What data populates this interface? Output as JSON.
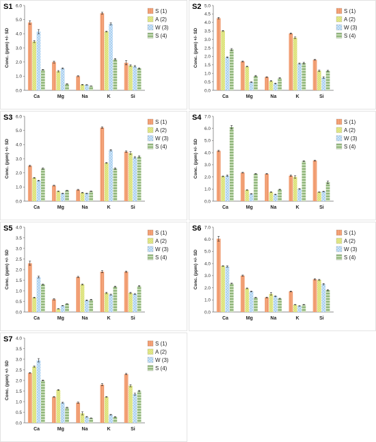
{
  "legend": [
    "S (1)",
    "A (2)",
    "W (3)",
    "S (4)"
  ],
  "ylabel": "Conc. (ppm) +/- SD",
  "categories": [
    "Ca",
    "Mg",
    "Na",
    "K",
    "Si"
  ],
  "colors": [
    "#f4a47a",
    "#e6ec90",
    "#a9d0f0",
    "#a8c896"
  ],
  "chart_data": [
    {
      "type": "bar",
      "title": "S1",
      "categories": [
        "Ca",
        "Mg",
        "Na",
        "K",
        "Si"
      ],
      "ylabel": "Conc. (ppm) +/- SD",
      "ylim": [
        0,
        6
      ],
      "ystep": 1,
      "series": [
        {
          "name": "S (1)",
          "values": [
            4.8,
            2.0,
            1.0,
            5.45,
            1.95
          ],
          "err": [
            0.12,
            0.07,
            0.03,
            0.07,
            0.15
          ]
        },
        {
          "name": "A (2)",
          "values": [
            3.45,
            1.35,
            0.4,
            4.15,
            1.75
          ],
          "err": [
            0.07,
            0.05,
            0.02,
            0.03,
            0.05
          ]
        },
        {
          "name": "W (3)",
          "values": [
            4.15,
            1.55,
            0.38,
            4.7,
            1.7
          ],
          "err": [
            0.15,
            0.04,
            0.02,
            0.08,
            0.05
          ]
        },
        {
          "name": "S (4)",
          "values": [
            1.45,
            0.45,
            0.3,
            2.2,
            1.55
          ],
          "err": [
            0.03,
            0.02,
            0.01,
            0.05,
            0.04
          ]
        }
      ]
    },
    {
      "type": "bar",
      "title": "S2",
      "categories": [
        "Ca",
        "Mg",
        "Na",
        "K",
        "Si"
      ],
      "ylabel": "Conc. (ppm) +/- SD",
      "ylim": [
        0,
        5
      ],
      "ystep": 0.5,
      "series": [
        {
          "name": "S (1)",
          "values": [
            4.25,
            1.7,
            0.78,
            3.35,
            1.8
          ],
          "err": [
            0.05,
            0.03,
            0.02,
            0.03,
            0.02
          ]
        },
        {
          "name": "A (2)",
          "values": [
            3.5,
            1.4,
            0.55,
            3.1,
            1.15
          ],
          "err": [
            0.03,
            0.02,
            0.02,
            0.05,
            0.05
          ]
        },
        {
          "name": "W (3)",
          "values": [
            1.95,
            0.48,
            0.4,
            1.58,
            0.75
          ],
          "err": [
            0.02,
            0.02,
            0.02,
            0.03,
            0.05
          ]
        },
        {
          "name": "S (4)",
          "values": [
            2.4,
            0.85,
            0.72,
            1.6,
            1.15
          ],
          "err": [
            0.06,
            0.03,
            0.02,
            0.05,
            0.03
          ]
        }
      ]
    },
    {
      "type": "bar",
      "title": "S3",
      "categories": [
        "Ca",
        "Mg",
        "Na",
        "K",
        "Si"
      ],
      "ylabel": "Conc. (ppm) +/- SD",
      "ylim": [
        0,
        6
      ],
      "ystep": 1,
      "series": [
        {
          "name": "S (1)",
          "values": [
            2.5,
            1.1,
            0.8,
            5.2,
            3.5
          ],
          "err": [
            0.05,
            0.03,
            0.03,
            0.05,
            0.05
          ]
        },
        {
          "name": "A (2)",
          "values": [
            1.65,
            0.7,
            0.6,
            2.7,
            3.4
          ],
          "err": [
            0.03,
            0.02,
            0.02,
            0.03,
            0.1
          ]
        },
        {
          "name": "W (3)",
          "values": [
            1.45,
            0.55,
            0.55,
            3.6,
            3.1
          ],
          "err": [
            0.03,
            0.02,
            0.02,
            0.05,
            0.05
          ]
        },
        {
          "name": "S (4)",
          "values": [
            2.3,
            0.75,
            0.7,
            2.3,
            3.15
          ],
          "err": [
            0.05,
            0.02,
            0.02,
            0.05,
            0.05
          ]
        }
      ]
    },
    {
      "type": "bar",
      "title": "S4",
      "categories": [
        "Ca",
        "Mg",
        "Na",
        "K",
        "Si"
      ],
      "ylabel": "Conc. (ppm) +/- SD",
      "ylim": [
        0,
        7
      ],
      "ystep": 1,
      "series": [
        {
          "name": "S (1)",
          "values": [
            4.15,
            2.35,
            2.25,
            2.1,
            3.35
          ],
          "err": [
            0.05,
            0.03,
            0.03,
            0.05,
            0.03
          ]
        },
        {
          "name": "A (2)",
          "values": [
            2.05,
            0.92,
            0.75,
            2.0,
            0.75
          ],
          "err": [
            0.03,
            0.02,
            0.02,
            0.1,
            0.02
          ]
        },
        {
          "name": "W (3)",
          "values": [
            2.1,
            0.6,
            0.55,
            1.0,
            0.8
          ],
          "err": [
            0.05,
            0.02,
            0.02,
            0.03,
            0.02
          ]
        },
        {
          "name": "S (4)",
          "values": [
            6.1,
            2.25,
            0.97,
            3.3,
            1.55
          ],
          "err": [
            0.15,
            0.03,
            0.02,
            0.03,
            0.1
          ]
        }
      ]
    },
    {
      "type": "bar",
      "title": "S5",
      "categories": [
        "Ca",
        "Mg",
        "Na",
        "K",
        "Si"
      ],
      "ylabel": "Conc. (ppm) +/- SD",
      "ylim": [
        0,
        4
      ],
      "ystep": 0.5,
      "series": [
        {
          "name": "S (1)",
          "values": [
            2.3,
            0.6,
            1.65,
            1.9,
            1.9
          ],
          "err": [
            0.1,
            0.03,
            0.03,
            0.05,
            0.03
          ]
        },
        {
          "name": "A (2)",
          "values": [
            0.68,
            0.15,
            1.3,
            0.9,
            0.9
          ],
          "err": [
            0.02,
            0.01,
            0.02,
            0.03,
            0.03
          ]
        },
        {
          "name": "W (3)",
          "values": [
            1.65,
            0.3,
            0.55,
            0.82,
            0.85
          ],
          "err": [
            0.04,
            0.01,
            0.02,
            0.02,
            0.02
          ]
        },
        {
          "name": "S (4)",
          "values": [
            1.3,
            0.38,
            0.58,
            1.2,
            1.22
          ],
          "err": [
            0.02,
            0.01,
            0.02,
            0.02,
            0.02
          ]
        }
      ]
    },
    {
      "type": "bar",
      "title": "S6",
      "categories": [
        "Ca",
        "Mg",
        "Na",
        "K",
        "Si"
      ],
      "ylabel": "Conc. (ppm) +/- SD",
      "ylim": [
        0,
        7
      ],
      "ystep": 1,
      "series": [
        {
          "name": "S (1)",
          "values": [
            6.05,
            3.0,
            1.2,
            1.7,
            2.7
          ],
          "err": [
            0.2,
            0.05,
            0.03,
            0.03,
            0.05
          ]
        },
        {
          "name": "A (2)",
          "values": [
            3.8,
            1.95,
            1.5,
            0.6,
            2.65
          ],
          "err": [
            0.03,
            0.03,
            0.1,
            0.02,
            0.05
          ]
        },
        {
          "name": "W (3)",
          "values": [
            3.75,
            1.7,
            1.3,
            0.5,
            2.3
          ],
          "err": [
            0.05,
            0.03,
            0.03,
            0.02,
            0.05
          ]
        },
        {
          "name": "S (4)",
          "values": [
            2.35,
            1.2,
            1.1,
            0.6,
            1.8
          ],
          "err": [
            0.03,
            0.02,
            0.03,
            0.02,
            0.05
          ]
        }
      ]
    },
    {
      "type": "bar",
      "title": "S7",
      "categories": [
        "Ca",
        "Mg",
        "Na",
        "K",
        "Si"
      ],
      "ylabel": "Conc. (ppm) +/- SD",
      "ylim": [
        0,
        4
      ],
      "ystep": 0.5,
      "series": [
        {
          "name": "S (1)",
          "values": [
            2.35,
            1.22,
            0.95,
            1.8,
            2.3
          ],
          "err": [
            0.02,
            0.02,
            0.03,
            0.05,
            0.03
          ]
        },
        {
          "name": "A (2)",
          "values": [
            2.65,
            1.55,
            0.45,
            1.22,
            1.75
          ],
          "err": [
            0.03,
            0.02,
            0.07,
            0.02,
            0.05
          ]
        },
        {
          "name": "W (3)",
          "values": [
            2.95,
            0.95,
            0.28,
            0.38,
            1.35
          ],
          "err": [
            0.08,
            0.02,
            0.02,
            0.02,
            0.05
          ]
        },
        {
          "name": "S (4)",
          "values": [
            2.0,
            0.72,
            0.22,
            0.28,
            1.5
          ],
          "err": [
            0.02,
            0.02,
            0.01,
            0.01,
            0.03
          ]
        }
      ]
    }
  ]
}
